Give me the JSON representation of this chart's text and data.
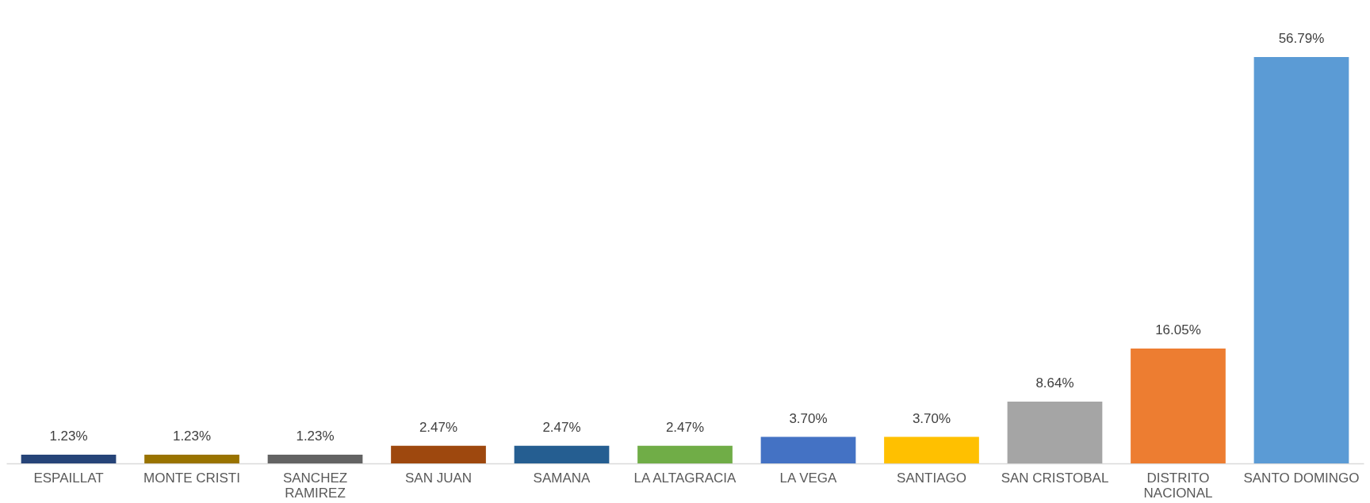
{
  "chart_data": {
    "type": "bar",
    "categories": [
      "ESPAILLAT",
      "MONTE CRISTI",
      "SANCHEZ RAMIREZ",
      "SAN JUAN",
      "SAMANA",
      "LA ALTAGRACIA",
      "LA VEGA",
      "SANTIAGO",
      "SAN CRISTOBAL",
      "DISTRITO NACIONAL",
      "SANTO DOMINGO"
    ],
    "values": [
      1.23,
      1.23,
      1.23,
      2.47,
      2.47,
      2.47,
      3.7,
      3.7,
      8.64,
      16.05,
      56.79
    ],
    "value_labels": [
      "1.23%",
      "1.23%",
      "1.23%",
      "2.47%",
      "2.47%",
      "2.47%",
      "3.70%",
      "3.70%",
      "8.64%",
      "16.05%",
      "56.79%"
    ],
    "colors": [
      "#264478",
      "#997300",
      "#636363",
      "#9e480e",
      "#255e91",
      "#70ad47",
      "#4472c4",
      "#ffc000",
      "#a5a5a5",
      "#ed7d31",
      "#5b9bd5"
    ],
    "grid": false
  }
}
